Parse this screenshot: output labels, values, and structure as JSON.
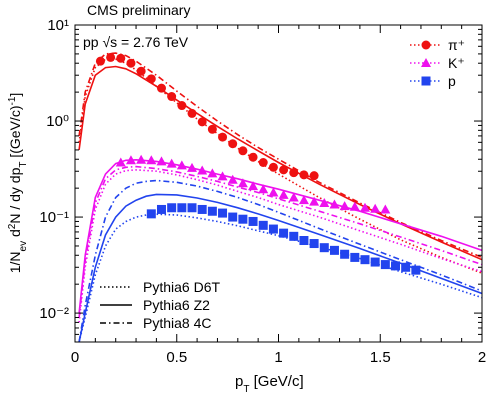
{
  "chart_data": {
    "type": "scatter",
    "banner": "CMS preliminary",
    "system_label": "pp √s = 2.76 TeV",
    "xlabel": "p_T [GeV/c]",
    "ylabel": "1/N_ev d²N / dy dp_T [(GeV/c)⁻¹]",
    "xlim": [
      0,
      2
    ],
    "ylim": [
      0.005,
      10
    ],
    "yscale": "log",
    "x_ticks": [
      0,
      0.5,
      1,
      1.5,
      2
    ],
    "x_tick_labels": [
      "0",
      "0.5",
      "1",
      "1.5",
      "2"
    ],
    "y_ticks": [
      0.01,
      0.1,
      1,
      10
    ],
    "y_tick_labels": [
      "10⁻²",
      "10⁻¹",
      "10⁰",
      "10¹"
    ],
    "legend_position": "top-right",
    "series": [
      {
        "name": "π⁺",
        "color": "#ee1111",
        "marker": "circle",
        "x": [
          0.125,
          0.175,
          0.225,
          0.275,
          0.325,
          0.375,
          0.425,
          0.475,
          0.525,
          0.575,
          0.625,
          0.675,
          0.725,
          0.775,
          0.825,
          0.875,
          0.925,
          0.975,
          1.025,
          1.075,
          1.125,
          1.175
        ],
        "y": [
          4.2,
          4.6,
          4.5,
          4.0,
          3.3,
          2.75,
          2.2,
          1.8,
          1.45,
          1.2,
          0.98,
          0.82,
          0.68,
          0.58,
          0.49,
          0.42,
          0.37,
          0.33,
          0.31,
          0.29,
          0.275,
          0.27
        ]
      },
      {
        "name": "K⁺",
        "color": "#ee11ee",
        "marker": "triangle",
        "x": [
          0.225,
          0.275,
          0.325,
          0.375,
          0.425,
          0.475,
          0.525,
          0.575,
          0.625,
          0.675,
          0.725,
          0.775,
          0.825,
          0.875,
          0.925,
          0.975,
          1.025,
          1.075,
          1.125,
          1.175,
          1.225,
          1.275,
          1.325,
          1.375,
          1.425,
          1.475,
          1.525
        ],
        "y": [
          0.37,
          0.39,
          0.395,
          0.39,
          0.38,
          0.36,
          0.345,
          0.325,
          0.305,
          0.285,
          0.265,
          0.245,
          0.225,
          0.21,
          0.195,
          0.18,
          0.17,
          0.16,
          0.15,
          0.145,
          0.14,
          0.135,
          0.13,
          0.128,
          0.125,
          0.122,
          0.12
        ]
      },
      {
        "name": "p",
        "color": "#2244ee",
        "marker": "square",
        "x": [
          0.375,
          0.425,
          0.475,
          0.525,
          0.575,
          0.625,
          0.675,
          0.725,
          0.775,
          0.825,
          0.875,
          0.925,
          0.975,
          1.025,
          1.075,
          1.125,
          1.175,
          1.225,
          1.275,
          1.325,
          1.375,
          1.425,
          1.475,
          1.525,
          1.575,
          1.625,
          1.675
        ],
        "y": [
          0.108,
          0.12,
          0.125,
          0.125,
          0.125,
          0.12,
          0.115,
          0.11,
          0.1,
          0.095,
          0.09,
          0.082,
          0.075,
          0.068,
          0.063,
          0.057,
          0.053,
          0.048,
          0.045,
          0.041,
          0.038,
          0.036,
          0.034,
          0.032,
          0.031,
          0.03,
          0.028
        ]
      }
    ],
    "curves": [
      {
        "particle": "pi",
        "style": "dotted",
        "color": "#ee1111",
        "x": [
          0.02,
          0.05,
          0.1,
          0.15,
          0.2,
          0.25,
          0.3,
          0.4,
          0.5,
          0.6,
          0.7,
          0.8,
          0.9,
          1.0,
          1.2,
          1.4,
          1.6,
          1.8,
          2.0
        ],
        "y": [
          0.6,
          1.8,
          3.6,
          4.4,
          4.4,
          4.0,
          3.4,
          2.3,
          1.55,
          1.05,
          0.74,
          0.52,
          0.38,
          0.28,
          0.16,
          0.095,
          0.058,
          0.038,
          0.026
        ]
      },
      {
        "particle": "pi",
        "style": "solid",
        "color": "#ee1111",
        "x": [
          0.02,
          0.05,
          0.1,
          0.15,
          0.2,
          0.25,
          0.3,
          0.4,
          0.5,
          0.6,
          0.7,
          0.8,
          0.9,
          1.0,
          1.2,
          1.4,
          1.6,
          1.8,
          2.0
        ],
        "y": [
          0.5,
          1.5,
          3.0,
          3.6,
          3.7,
          3.5,
          3.1,
          2.3,
          1.65,
          1.2,
          0.88,
          0.65,
          0.49,
          0.37,
          0.22,
          0.135,
          0.085,
          0.055,
          0.036
        ]
      },
      {
        "particle": "pi",
        "style": "dashdot",
        "color": "#ee1111",
        "x": [
          0.02,
          0.05,
          0.1,
          0.15,
          0.2,
          0.25,
          0.3,
          0.4,
          0.5,
          0.6,
          0.7,
          0.8,
          0.9,
          1.0,
          1.2,
          1.4,
          1.6,
          1.8,
          2.0
        ],
        "y": [
          0.7,
          2.0,
          4.0,
          5.0,
          5.1,
          4.8,
          4.2,
          3.0,
          2.05,
          1.42,
          1.0,
          0.72,
          0.53,
          0.4,
          0.23,
          0.14,
          0.088,
          0.057,
          0.038
        ]
      },
      {
        "particle": "K",
        "style": "dotted",
        "color": "#ee11ee",
        "x": [
          0.02,
          0.05,
          0.1,
          0.15,
          0.2,
          0.25,
          0.3,
          0.4,
          0.5,
          0.6,
          0.7,
          0.8,
          0.9,
          1.0,
          1.2,
          1.4,
          1.6,
          1.8,
          2.0
        ],
        "y": [
          0.008,
          0.03,
          0.12,
          0.22,
          0.28,
          0.305,
          0.31,
          0.3,
          0.275,
          0.245,
          0.215,
          0.185,
          0.16,
          0.135,
          0.1,
          0.072,
          0.052,
          0.037,
          0.027
        ]
      },
      {
        "particle": "K",
        "style": "solid",
        "color": "#ee11ee",
        "x": [
          0.02,
          0.05,
          0.1,
          0.15,
          0.2,
          0.25,
          0.3,
          0.4,
          0.5,
          0.6,
          0.7,
          0.8,
          0.9,
          1.0,
          1.2,
          1.4,
          1.6,
          1.8,
          2.0
        ],
        "y": [
          0.01,
          0.04,
          0.16,
          0.28,
          0.36,
          0.39,
          0.395,
          0.38,
          0.35,
          0.315,
          0.28,
          0.25,
          0.22,
          0.195,
          0.15,
          0.115,
          0.085,
          0.063,
          0.045
        ]
      },
      {
        "particle": "K",
        "style": "dashdot",
        "color": "#ee11ee",
        "x": [
          0.02,
          0.05,
          0.1,
          0.15,
          0.2,
          0.25,
          0.3,
          0.4,
          0.5,
          0.6,
          0.7,
          0.8,
          0.9,
          1.0,
          1.2,
          1.4,
          1.6,
          1.8,
          2.0
        ],
        "y": [
          0.009,
          0.035,
          0.14,
          0.25,
          0.31,
          0.33,
          0.335,
          0.32,
          0.295,
          0.265,
          0.235,
          0.205,
          0.18,
          0.155,
          0.115,
          0.085,
          0.062,
          0.045,
          0.032
        ]
      },
      {
        "particle": "p",
        "style": "dotted",
        "color": "#2244ee",
        "x": [
          0.02,
          0.05,
          0.1,
          0.15,
          0.2,
          0.25,
          0.3,
          0.35,
          0.4,
          0.5,
          0.6,
          0.7,
          0.8,
          0.9,
          1.0,
          1.2,
          1.4,
          1.6,
          1.8,
          2.0
        ],
        "y": [
          0.005,
          0.009,
          0.025,
          0.05,
          0.075,
          0.09,
          0.1,
          0.105,
          0.107,
          0.105,
          0.098,
          0.09,
          0.081,
          0.072,
          0.064,
          0.049,
          0.037,
          0.027,
          0.02,
          0.0145
        ]
      },
      {
        "particle": "p",
        "style": "solid",
        "color": "#2244ee",
        "x": [
          0.02,
          0.05,
          0.1,
          0.15,
          0.2,
          0.25,
          0.3,
          0.35,
          0.4,
          0.5,
          0.6,
          0.7,
          0.8,
          0.9,
          1.0,
          1.2,
          1.4,
          1.6,
          1.8,
          2.0
        ],
        "y": [
          0.005,
          0.01,
          0.03,
          0.065,
          0.1,
          0.13,
          0.15,
          0.165,
          0.172,
          0.17,
          0.158,
          0.142,
          0.125,
          0.108,
          0.092,
          0.066,
          0.047,
          0.033,
          0.023,
          0.016
        ]
      },
      {
        "particle": "p",
        "style": "dashdot",
        "color": "#2244ee",
        "x": [
          0.02,
          0.05,
          0.1,
          0.15,
          0.2,
          0.25,
          0.3,
          0.35,
          0.4,
          0.5,
          0.6,
          0.7,
          0.8,
          0.9,
          1.0,
          1.2,
          1.4,
          1.6,
          1.8,
          2.0
        ],
        "y": [
          0.005,
          0.012,
          0.04,
          0.1,
          0.16,
          0.2,
          0.225,
          0.235,
          0.24,
          0.23,
          0.21,
          0.185,
          0.16,
          0.135,
          0.112,
          0.076,
          0.052,
          0.036,
          0.025,
          0.017
        ]
      }
    ],
    "generator_legend": [
      {
        "label": "Pythia6 D6T",
        "style": "dotted"
      },
      {
        "label": "Pythia6 Z2",
        "style": "solid"
      },
      {
        "label": "Pythia8 4C",
        "style": "dashdot"
      }
    ]
  }
}
